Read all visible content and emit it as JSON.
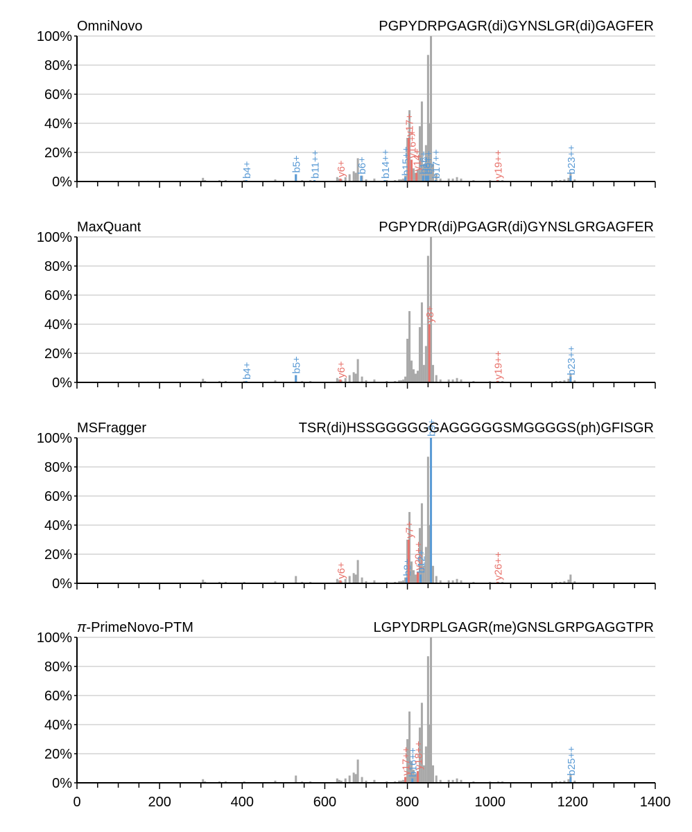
{
  "colors": {
    "background_peak": "#a9a9a9",
    "b_ion": "#5b9bd5",
    "y_ion": "#e8736c",
    "grid": "#d3d3d3",
    "axis": "#000000"
  },
  "shared": {
    "x_ticks": [
      "0",
      "200",
      "400",
      "600",
      "800",
      "1000",
      "1200",
      "1400"
    ],
    "y_ticks": [
      "0%",
      "20%",
      "40%",
      "60%",
      "80%",
      "100%"
    ]
  },
  "chart_data": [
    {
      "type": "bar",
      "title": "OmniNovo",
      "subtitle": "PGPYDRPGAGR(di)GYNSLGR(di)GAGFER",
      "title_prefix_italic": "",
      "xlim": [
        0,
        1400
      ],
      "ylim": [
        0,
        100
      ],
      "grid": true,
      "peaks": [
        [
          172,
          0.5
        ],
        [
          305,
          2.5
        ],
        [
          310,
          1
        ],
        [
          345,
          1
        ],
        [
          360,
          1
        ],
        [
          405,
          1
        ],
        [
          480,
          1.5
        ],
        [
          530,
          5
        ],
        [
          545,
          1
        ],
        [
          565,
          1
        ],
        [
          630,
          3
        ],
        [
          635,
          2
        ],
        [
          640,
          1.5
        ],
        [
          650,
          3
        ],
        [
          660,
          5
        ],
        [
          670,
          7
        ],
        [
          675,
          6
        ],
        [
          680,
          16
        ],
        [
          690,
          4
        ],
        [
          700,
          1.5
        ],
        [
          720,
          2
        ],
        [
          750,
          1
        ],
        [
          770,
          1
        ],
        [
          780,
          1.5
        ],
        [
          785,
          1.5
        ],
        [
          790,
          2
        ],
        [
          795,
          4
        ],
        [
          800,
          30
        ],
        [
          805,
          49
        ],
        [
          810,
          15
        ],
        [
          815,
          9
        ],
        [
          820,
          6
        ],
        [
          825,
          8
        ],
        [
          830,
          38
        ],
        [
          835,
          55
        ],
        [
          840,
          12
        ],
        [
          845,
          25
        ],
        [
          850,
          87
        ],
        [
          853,
          40
        ],
        [
          857,
          100
        ],
        [
          862,
          12
        ],
        [
          870,
          5
        ],
        [
          880,
          2
        ],
        [
          900,
          2
        ],
        [
          910,
          2
        ],
        [
          920,
          3
        ],
        [
          930,
          2
        ],
        [
          960,
          1
        ],
        [
          1000,
          1
        ],
        [
          1020,
          1
        ],
        [
          1030,
          1
        ],
        [
          1160,
          1
        ],
        [
          1170,
          1
        ],
        [
          1180,
          1.5
        ],
        [
          1190,
          2.5
        ],
        [
          1195,
          6
        ],
        [
          1205,
          1.5
        ],
        [
          1340,
          0.5
        ]
      ],
      "annotations": [
        {
          "label": "b4+",
          "mz": 410,
          "ion": "b",
          "height": 1
        },
        {
          "label": "b5+",
          "mz": 530,
          "ion": "b",
          "height": 5
        },
        {
          "label": "b11++",
          "mz": 575,
          "ion": "b",
          "height": 1
        },
        {
          "label": "y6+",
          "mz": 638,
          "ion": "y",
          "height": 2
        },
        {
          "label": "b6+",
          "mz": 688,
          "ion": "b",
          "height": 4
        },
        {
          "label": "b14++",
          "mz": 745,
          "ion": "b",
          "height": 1
        },
        {
          "label": "b15++",
          "mz": 795,
          "ion": "b",
          "height": 3
        },
        {
          "label": "y17+",
          "mz": 803,
          "ion": "y",
          "height": 30
        },
        {
          "label": "y16++",
          "mz": 810,
          "ion": "y",
          "height": 15
        },
        {
          "label": "y14+",
          "mz": 822,
          "ion": "y",
          "height": 6
        },
        {
          "label": "b16+",
          "mz": 838,
          "ion": "b",
          "height": 4
        },
        {
          "label": "b8+",
          "mz": 845,
          "ion": "b",
          "height": 4
        },
        {
          "label": "b9++",
          "mz": 850,
          "ion": "b",
          "height": 4
        },
        {
          "label": "b17++",
          "mz": 868,
          "ion": "b",
          "height": 1
        },
        {
          "label": "y19++",
          "mz": 1018,
          "ion": "y",
          "height": 1
        },
        {
          "label": "b23++",
          "mz": 1195,
          "ion": "b",
          "height": 4
        }
      ]
    },
    {
      "type": "bar",
      "title": "MaxQuant",
      "subtitle": "PGPYDR(di)PGAGR(di)GYNSLGRGAGFER",
      "title_prefix_italic": "",
      "xlim": [
        0,
        1400
      ],
      "ylim": [
        0,
        100
      ],
      "grid": true,
      "peaks": [
        [
          172,
          0.5
        ],
        [
          305,
          2.5
        ],
        [
          310,
          1
        ],
        [
          345,
          1
        ],
        [
          360,
          1
        ],
        [
          405,
          1
        ],
        [
          480,
          1.5
        ],
        [
          530,
          5
        ],
        [
          545,
          1
        ],
        [
          565,
          1
        ],
        [
          630,
          3
        ],
        [
          635,
          2
        ],
        [
          640,
          1.5
        ],
        [
          650,
          3
        ],
        [
          660,
          5
        ],
        [
          670,
          7
        ],
        [
          675,
          6
        ],
        [
          680,
          16
        ],
        [
          690,
          4
        ],
        [
          700,
          1.5
        ],
        [
          720,
          2
        ],
        [
          750,
          1
        ],
        [
          770,
          1
        ],
        [
          780,
          1.5
        ],
        [
          785,
          1.5
        ],
        [
          790,
          2
        ],
        [
          795,
          4
        ],
        [
          800,
          30
        ],
        [
          805,
          49
        ],
        [
          810,
          15
        ],
        [
          815,
          9
        ],
        [
          820,
          6
        ],
        [
          825,
          8
        ],
        [
          830,
          38
        ],
        [
          835,
          55
        ],
        [
          840,
          12
        ],
        [
          845,
          25
        ],
        [
          850,
          87
        ],
        [
          853,
          40
        ],
        [
          857,
          100
        ],
        [
          862,
          12
        ],
        [
          870,
          5
        ],
        [
          880,
          2
        ],
        [
          900,
          2
        ],
        [
          910,
          2
        ],
        [
          920,
          3
        ],
        [
          930,
          2
        ],
        [
          960,
          1
        ],
        [
          1000,
          1
        ],
        [
          1020,
          1
        ],
        [
          1030,
          1
        ],
        [
          1160,
          1
        ],
        [
          1170,
          1
        ],
        [
          1180,
          1.5
        ],
        [
          1190,
          2.5
        ],
        [
          1195,
          6
        ],
        [
          1205,
          1.5
        ],
        [
          1340,
          0.5
        ]
      ],
      "annotations": [
        {
          "label": "b4+",
          "mz": 410,
          "ion": "b",
          "height": 1
        },
        {
          "label": "b5+",
          "mz": 530,
          "ion": "b",
          "height": 5
        },
        {
          "label": "y6+",
          "mz": 638,
          "ion": "y",
          "height": 2
        },
        {
          "label": "y8+",
          "mz": 853,
          "ion": "y",
          "height": 40
        },
        {
          "label": "y19++",
          "mz": 1018,
          "ion": "y",
          "height": 1
        },
        {
          "label": "b23++",
          "mz": 1195,
          "ion": "b",
          "height": 4
        }
      ]
    },
    {
      "type": "bar",
      "title": "MSFragger",
      "subtitle": "TSR(di)HSSGGGGGGAGGGGGSMGGGGS(ph)GFISGR",
      "title_prefix_italic": "",
      "xlim": [
        0,
        1400
      ],
      "ylim": [
        0,
        100
      ],
      "grid": true,
      "peaks": [
        [
          172,
          0.5
        ],
        [
          305,
          2.5
        ],
        [
          310,
          1
        ],
        [
          345,
          1
        ],
        [
          360,
          1
        ],
        [
          405,
          1
        ],
        [
          480,
          1.5
        ],
        [
          530,
          5
        ],
        [
          545,
          1
        ],
        [
          565,
          1
        ],
        [
          630,
          3
        ],
        [
          635,
          2
        ],
        [
          640,
          1.5
        ],
        [
          650,
          3
        ],
        [
          660,
          5
        ],
        [
          670,
          7
        ],
        [
          675,
          6
        ],
        [
          680,
          16
        ],
        [
          690,
          4
        ],
        [
          700,
          1.5
        ],
        [
          720,
          2
        ],
        [
          750,
          1
        ],
        [
          770,
          1
        ],
        [
          780,
          1.5
        ],
        [
          785,
          1.5
        ],
        [
          790,
          2
        ],
        [
          795,
          4
        ],
        [
          800,
          30
        ],
        [
          805,
          49
        ],
        [
          810,
          15
        ],
        [
          815,
          9
        ],
        [
          820,
          6
        ],
        [
          825,
          8
        ],
        [
          830,
          38
        ],
        [
          835,
          55
        ],
        [
          840,
          12
        ],
        [
          845,
          25
        ],
        [
          850,
          87
        ],
        [
          853,
          40
        ],
        [
          857,
          100
        ],
        [
          862,
          12
        ],
        [
          870,
          5
        ],
        [
          880,
          2
        ],
        [
          900,
          2
        ],
        [
          910,
          2
        ],
        [
          920,
          3
        ],
        [
          930,
          2
        ],
        [
          960,
          1
        ],
        [
          1000,
          1
        ],
        [
          1020,
          1
        ],
        [
          1030,
          1
        ],
        [
          1160,
          1
        ],
        [
          1170,
          1
        ],
        [
          1180,
          1.5
        ],
        [
          1190,
          2.5
        ],
        [
          1195,
          6
        ],
        [
          1205,
          1.5
        ],
        [
          1340,
          0.5
        ]
      ],
      "annotations": [
        {
          "label": "y6+",
          "mz": 638,
          "ion": "y",
          "height": 2
        },
        {
          "label": "b8+",
          "mz": 798,
          "ion": "b",
          "height": 4
        },
        {
          "label": "y7+",
          "mz": 803,
          "ion": "y",
          "height": 30
        },
        {
          "label": "y20++",
          "mz": 825,
          "ion": "y",
          "height": 8
        },
        {
          "label": "b12+",
          "mz": 832,
          "ion": "b",
          "height": 6
        },
        {
          "label": "b9+",
          "mz": 857,
          "ion": "b",
          "height": 100
        },
        {
          "label": "y26++",
          "mz": 1018,
          "ion": "y",
          "height": 1
        }
      ]
    },
    {
      "type": "bar",
      "title": "-PrimeNovo-PTM",
      "subtitle": "LGPYDRPLGAGR(me)GNSLGRPGAGGTPR",
      "title_prefix_italic": "π",
      "xlim": [
        0,
        1400
      ],
      "ylim": [
        0,
        100
      ],
      "grid": true,
      "peaks": [
        [
          172,
          0.5
        ],
        [
          305,
          2.5
        ],
        [
          310,
          1
        ],
        [
          345,
          1
        ],
        [
          360,
          1
        ],
        [
          405,
          1
        ],
        [
          480,
          1.5
        ],
        [
          530,
          5
        ],
        [
          545,
          1
        ],
        [
          565,
          1
        ],
        [
          630,
          3
        ],
        [
          635,
          2
        ],
        [
          640,
          1.5
        ],
        [
          650,
          3
        ],
        [
          660,
          5
        ],
        [
          670,
          7
        ],
        [
          675,
          6
        ],
        [
          680,
          16
        ],
        [
          690,
          4
        ],
        [
          700,
          1.5
        ],
        [
          720,
          2
        ],
        [
          750,
          1
        ],
        [
          770,
          1
        ],
        [
          780,
          1.5
        ],
        [
          785,
          1.5
        ],
        [
          790,
          2
        ],
        [
          795,
          4
        ],
        [
          800,
          30
        ],
        [
          805,
          49
        ],
        [
          810,
          15
        ],
        [
          815,
          9
        ],
        [
          820,
          6
        ],
        [
          825,
          8
        ],
        [
          830,
          38
        ],
        [
          835,
          55
        ],
        [
          840,
          12
        ],
        [
          845,
          25
        ],
        [
          850,
          87
        ],
        [
          853,
          40
        ],
        [
          857,
          100
        ],
        [
          862,
          12
        ],
        [
          870,
          5
        ],
        [
          880,
          2
        ],
        [
          900,
          2
        ],
        [
          910,
          2
        ],
        [
          920,
          3
        ],
        [
          930,
          2
        ],
        [
          960,
          1
        ],
        [
          1000,
          1
        ],
        [
          1020,
          1
        ],
        [
          1030,
          1
        ],
        [
          1160,
          1
        ],
        [
          1170,
          1
        ],
        [
          1180,
          1.5
        ],
        [
          1190,
          2.5
        ],
        [
          1195,
          6
        ],
        [
          1205,
          1.5
        ],
        [
          1340,
          0.5
        ]
      ],
      "annotations": [
        {
          "label": "y17++",
          "mz": 795,
          "ion": "y",
          "height": 4
        },
        {
          "label": "b16++",
          "mz": 812,
          "ion": "b",
          "height": 3
        },
        {
          "label": "y18++",
          "mz": 825,
          "ion": "y",
          "height": 8
        },
        {
          "label": "b25++",
          "mz": 1195,
          "ion": "b",
          "height": 4
        }
      ]
    }
  ]
}
